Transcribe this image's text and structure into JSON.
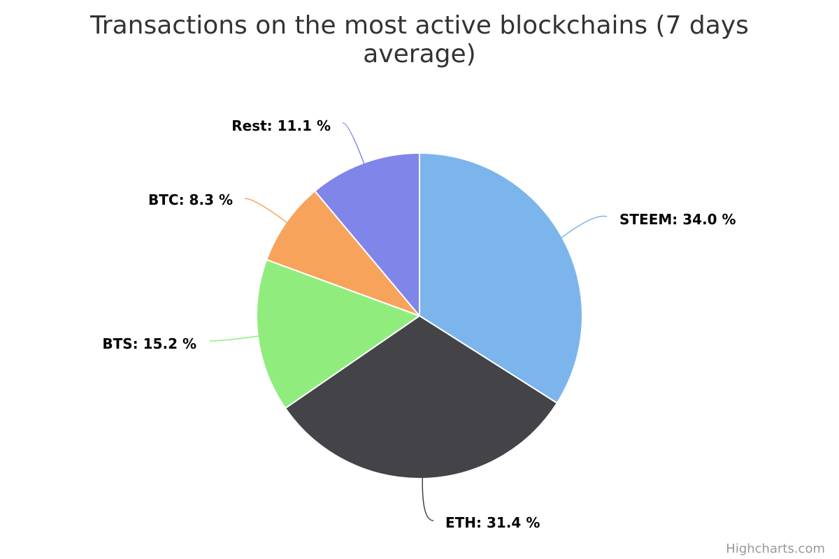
{
  "chart_data": {
    "type": "pie",
    "title": "Transactions on the most active blockchains (7 days average)",
    "title_lines": [
      "Transactions on the most active blockchains (7 days",
      "average)"
    ],
    "label_format": "{name}: {value} %",
    "slices": [
      {
        "name": "STEEM",
        "value": 34.0,
        "color": "#7cb5ec"
      },
      {
        "name": "ETH",
        "value": 31.4,
        "color": "#434348"
      },
      {
        "name": "BTS",
        "value": 15.2,
        "color": "#90ed7d"
      },
      {
        "name": "BTC",
        "value": 8.3,
        "color": "#f7a35c"
      },
      {
        "name": "Rest",
        "value": 11.1,
        "color": "#8085e9"
      }
    ],
    "start_angle": "top",
    "direction": "clockwise",
    "legend": "none",
    "credits": "Highcharts.com"
  }
}
